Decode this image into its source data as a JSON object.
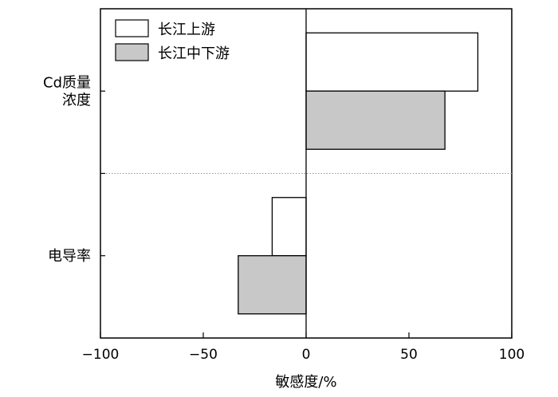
{
  "chart_data": {
    "type": "bar",
    "orientation": "horizontal",
    "categories": [
      "Cd质量\n浓度",
      "电导率"
    ],
    "series": [
      {
        "name": "长江上游",
        "values": [
          83.5,
          -16.5
        ],
        "color": "#ffffff"
      },
      {
        "name": "长江中下游",
        "values": [
          67.5,
          -33
        ],
        "color": "#c8c8c8"
      }
    ],
    "xlabel": "敏感度/%",
    "ylabel": "",
    "xlim": [
      -100,
      100
    ],
    "xticks": [
      -100,
      -50,
      0,
      50,
      100
    ],
    "xtick_labels": [
      "−100",
      "−50",
      "0",
      "50",
      "100"
    ],
    "legend_position": "top-left",
    "category_separator": "dotted"
  }
}
